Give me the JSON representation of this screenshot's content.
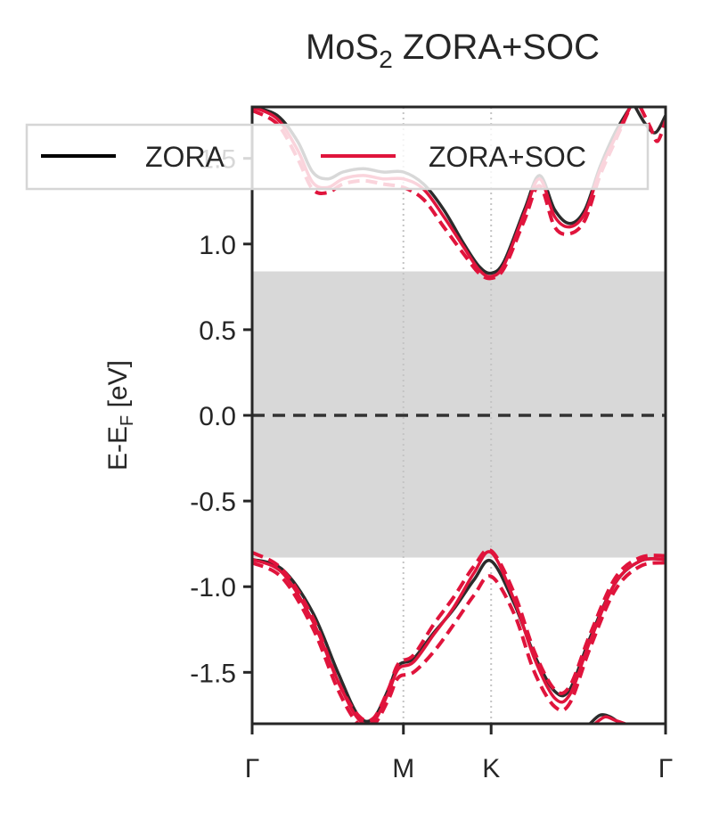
{
  "chart_data": {
    "type": "line",
    "title": {
      "base": "MoS",
      "sub": "2",
      "rest": " ZORA+SOC"
    },
    "ylabel": {
      "base": "E-E",
      "sub": "F",
      "rest": " [eV]"
    },
    "ylim": [
      -1.8,
      1.8
    ],
    "y_ticks": [
      1.5,
      1.0,
      0.5,
      0.0,
      -0.5,
      -1.0,
      -1.5
    ],
    "y_tick_labels": [
      "1.5",
      "1.0",
      "0.5",
      "0.0",
      "-0.5",
      "-1.0",
      "-1.5"
    ],
    "x_ticks": [
      0,
      1.5,
      2.37,
      4.1
    ],
    "x_tick_labels": [
      "Γ",
      "M",
      "K",
      "Γ"
    ],
    "xlim": [
      0,
      4.1
    ],
    "vertical_gridlines_at": [
      1.5,
      2.37
    ],
    "fermi_level": 0.0,
    "band_gap_shading": [
      -0.83,
      0.84
    ],
    "legend": {
      "placement": "top",
      "entries": [
        {
          "label": "ZORA",
          "color": "#000000"
        },
        {
          "label": "ZORA+SOC",
          "color": "#e0143c"
        }
      ]
    },
    "colors": {
      "zora": "#2b2b2b",
      "soc": "#e0143c",
      "gap": "#d8d8d8",
      "fermi": "#333333"
    },
    "series": [
      {
        "name": "ZORA",
        "style": "solid",
        "color": "#2b2b2b",
        "points": [
          [
            0,
            -0.84
          ],
          [
            0.3,
            -0.9
          ],
          [
            0.6,
            -1.15
          ],
          [
            0.85,
            -1.5
          ],
          [
            1.05,
            -1.75
          ],
          [
            1.2,
            -1.77
          ],
          [
            1.35,
            -1.6
          ],
          [
            1.45,
            -1.46
          ],
          [
            1.6,
            -1.42
          ],
          [
            1.8,
            -1.27
          ],
          [
            2.0,
            -1.13
          ],
          [
            2.2,
            -0.96
          ],
          [
            2.37,
            -0.85
          ],
          [
            2.6,
            -1.1
          ],
          [
            2.8,
            -1.4
          ],
          [
            3.0,
            -1.61
          ],
          [
            3.15,
            -1.6
          ],
          [
            3.35,
            -1.3
          ],
          [
            3.6,
            -0.98
          ],
          [
            3.85,
            -0.85
          ],
          [
            4.1,
            -0.84
          ]
        ]
      },
      {
        "name": "",
        "style": "solid",
        "color": "#2b2b2b",
        "points": [
          [
            0,
            1.8
          ],
          [
            0.25,
            1.75
          ],
          [
            0.45,
            1.6
          ],
          [
            0.6,
            1.42
          ],
          [
            0.75,
            1.38
          ],
          [
            0.9,
            1.42
          ],
          [
            1.1,
            1.44
          ],
          [
            1.3,
            1.42
          ],
          [
            1.5,
            1.42
          ],
          [
            1.7,
            1.35
          ],
          [
            1.9,
            1.2
          ],
          [
            2.1,
            1.0
          ],
          [
            2.25,
            0.87
          ],
          [
            2.37,
            0.83
          ],
          [
            2.5,
            0.9
          ],
          [
            2.7,
            1.2
          ],
          [
            2.85,
            1.4
          ],
          [
            3.0,
            1.2
          ],
          [
            3.15,
            1.12
          ],
          [
            3.3,
            1.2
          ],
          [
            3.45,
            1.45
          ],
          [
            3.6,
            1.65
          ],
          [
            3.75,
            1.8
          ]
        ]
      },
      {
        "name": "",
        "style": "solid",
        "color": "#2b2b2b",
        "points": [
          [
            3.8,
            1.8
          ],
          [
            3.9,
            1.7
          ],
          [
            4.0,
            1.65
          ],
          [
            4.1,
            1.75
          ]
        ]
      },
      {
        "name": "",
        "style": "solid",
        "color": "#2b2b2b",
        "points": [
          [
            3.35,
            -1.8
          ],
          [
            3.45,
            -1.75
          ],
          [
            3.55,
            -1.76
          ],
          [
            3.65,
            -1.8
          ]
        ]
      },
      {
        "name": "ZORA+SOC",
        "style": "solid",
        "color": "#e0143c",
        "points": [
          [
            0,
            -0.84
          ],
          [
            0.3,
            -0.92
          ],
          [
            0.6,
            -1.2
          ],
          [
            0.85,
            -1.55
          ],
          [
            1.05,
            -1.77
          ],
          [
            1.2,
            -1.79
          ],
          [
            1.35,
            -1.62
          ],
          [
            1.45,
            -1.48
          ],
          [
            1.6,
            -1.44
          ],
          [
            1.8,
            -1.28
          ],
          [
            2.0,
            -1.12
          ],
          [
            2.2,
            -0.92
          ],
          [
            2.37,
            -0.8
          ],
          [
            2.6,
            -1.08
          ],
          [
            2.8,
            -1.42
          ],
          [
            3.0,
            -1.65
          ],
          [
            3.15,
            -1.63
          ],
          [
            3.35,
            -1.32
          ],
          [
            3.6,
            -0.98
          ],
          [
            3.85,
            -0.85
          ],
          [
            4.1,
            -0.84
          ]
        ]
      },
      {
        "name": "",
        "style": "dashed",
        "color": "#e0143c",
        "points": [
          [
            0,
            -0.86
          ],
          [
            0.3,
            -0.95
          ],
          [
            0.6,
            -1.24
          ],
          [
            0.85,
            -1.6
          ],
          [
            1.05,
            -1.8
          ],
          [
            1.2,
            -1.81
          ],
          [
            1.35,
            -1.66
          ],
          [
            1.45,
            -1.53
          ],
          [
            1.6,
            -1.5
          ],
          [
            1.8,
            -1.38
          ],
          [
            2.0,
            -1.22
          ],
          [
            2.2,
            -1.05
          ],
          [
            2.37,
            -0.94
          ],
          [
            2.6,
            -1.16
          ],
          [
            2.8,
            -1.5
          ],
          [
            3.0,
            -1.7
          ],
          [
            3.15,
            -1.68
          ],
          [
            3.35,
            -1.36
          ],
          [
            3.6,
            -1.02
          ],
          [
            3.85,
            -0.88
          ],
          [
            4.1,
            -0.86
          ]
        ]
      },
      {
        "name": "",
        "style": "dashed",
        "color": "#e0143c",
        "points": [
          [
            0,
            -0.8
          ],
          [
            0.3,
            -0.9
          ],
          [
            0.6,
            -1.18
          ],
          [
            0.85,
            -1.55
          ],
          [
            1.05,
            -1.75
          ],
          [
            1.2,
            -1.77
          ],
          [
            1.35,
            -1.6
          ],
          [
            1.45,
            -1.45
          ],
          [
            1.6,
            -1.4
          ],
          [
            1.8,
            -1.22
          ],
          [
            2.0,
            -1.06
          ],
          [
            2.2,
            -0.88
          ],
          [
            2.37,
            -0.79
          ],
          [
            2.6,
            -1.04
          ],
          [
            2.8,
            -1.38
          ],
          [
            3.0,
            -1.6
          ],
          [
            3.15,
            -1.58
          ],
          [
            3.35,
            -1.28
          ],
          [
            3.6,
            -0.95
          ],
          [
            3.85,
            -0.83
          ],
          [
            4.1,
            -0.82
          ]
        ]
      },
      {
        "name": "",
        "style": "solid",
        "color": "#e0143c",
        "points": [
          [
            0,
            1.8
          ],
          [
            0.25,
            1.73
          ],
          [
            0.45,
            1.55
          ],
          [
            0.6,
            1.36
          ],
          [
            0.75,
            1.33
          ],
          [
            0.9,
            1.38
          ],
          [
            1.1,
            1.4
          ],
          [
            1.3,
            1.38
          ],
          [
            1.5,
            1.38
          ],
          [
            1.7,
            1.32
          ],
          [
            1.9,
            1.16
          ],
          [
            2.1,
            0.98
          ],
          [
            2.25,
            0.85
          ],
          [
            2.37,
            0.81
          ],
          [
            2.5,
            0.88
          ],
          [
            2.7,
            1.18
          ],
          [
            2.85,
            1.38
          ],
          [
            3.0,
            1.16
          ],
          [
            3.15,
            1.1
          ],
          [
            3.3,
            1.18
          ],
          [
            3.45,
            1.43
          ],
          [
            3.6,
            1.62
          ],
          [
            3.75,
            1.8
          ]
        ]
      },
      {
        "name": "",
        "style": "dashed",
        "color": "#e0143c",
        "points": [
          [
            0,
            1.78
          ],
          [
            0.25,
            1.7
          ],
          [
            0.45,
            1.5
          ],
          [
            0.6,
            1.32
          ],
          [
            0.75,
            1.3
          ],
          [
            0.9,
            1.35
          ],
          [
            1.1,
            1.37
          ],
          [
            1.3,
            1.35
          ],
          [
            1.5,
            1.33
          ],
          [
            1.7,
            1.26
          ],
          [
            1.9,
            1.1
          ],
          [
            2.1,
            0.94
          ],
          [
            2.25,
            0.83
          ],
          [
            2.37,
            0.8
          ],
          [
            2.5,
            0.86
          ],
          [
            2.7,
            1.14
          ],
          [
            2.85,
            1.34
          ],
          [
            3.0,
            1.1
          ],
          [
            3.15,
            1.06
          ],
          [
            3.3,
            1.14
          ],
          [
            3.45,
            1.4
          ],
          [
            3.6,
            1.6
          ],
          [
            3.75,
            1.8
          ]
        ]
      },
      {
        "name": "",
        "style": "dashed",
        "color": "#e0143c",
        "points": [
          [
            3.85,
            1.8
          ],
          [
            3.95,
            1.68
          ],
          [
            4.02,
            1.6
          ],
          [
            4.1,
            1.72
          ]
        ]
      },
      {
        "name": "",
        "style": "solid",
        "color": "#e0143c",
        "points": [
          [
            3.4,
            -1.8
          ],
          [
            3.5,
            -1.76
          ],
          [
            3.6,
            -1.78
          ],
          [
            3.7,
            -1.8
          ]
        ]
      }
    ]
  }
}
